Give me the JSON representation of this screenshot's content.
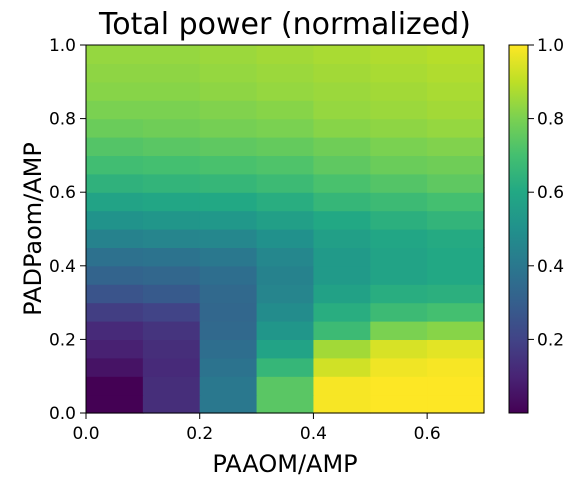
{
  "chart_data": {
    "type": "heatmap",
    "title": "Total power (normalized)",
    "xlabel": "PAAOM/AMP",
    "ylabel": "PADPaom/AMP",
    "xlim": [
      0,
      0.7
    ],
    "ylim": [
      0,
      1.0
    ],
    "x_edges": [
      0.0,
      0.1,
      0.2,
      0.3,
      0.4,
      0.5,
      0.6,
      0.7
    ],
    "y_edges": [
      0.0,
      0.05,
      0.1,
      0.15,
      0.2,
      0.25,
      0.3,
      0.35,
      0.4,
      0.45,
      0.5,
      0.55,
      0.6,
      0.65,
      0.7,
      0.75,
      0.8,
      0.85,
      0.9,
      0.95,
      1.0
    ],
    "xticks": [
      "0.0",
      "0.2",
      "0.4",
      "0.6"
    ],
    "yticks": [
      "0.0",
      "0.2",
      "0.4",
      "0.6",
      "0.8",
      "1.0"
    ],
    "colormap": "viridis",
    "colorbar": {
      "min": 0.0,
      "max": 1.0,
      "ticks": [
        "0.2",
        "0.4",
        "0.6",
        "0.8",
        "1.0"
      ]
    },
    "values_rows_bottom_to_top": [
      [
        0.0,
        0.13,
        0.4,
        0.74,
        0.99,
        1.0,
        1.0
      ],
      [
        0.0,
        0.13,
        0.4,
        0.74,
        0.99,
        1.0,
        1.0
      ],
      [
        0.05,
        0.12,
        0.38,
        0.66,
        0.93,
        0.98,
        0.99
      ],
      [
        0.09,
        0.13,
        0.36,
        0.58,
        0.86,
        0.94,
        0.96
      ],
      [
        0.12,
        0.15,
        0.34,
        0.52,
        0.68,
        0.8,
        0.82
      ],
      [
        0.18,
        0.2,
        0.33,
        0.48,
        0.62,
        0.68,
        0.7
      ],
      [
        0.26,
        0.28,
        0.34,
        0.45,
        0.57,
        0.62,
        0.63
      ],
      [
        0.32,
        0.33,
        0.36,
        0.44,
        0.54,
        0.58,
        0.6
      ],
      [
        0.37,
        0.38,
        0.4,
        0.46,
        0.54,
        0.58,
        0.6
      ],
      [
        0.44,
        0.45,
        0.46,
        0.5,
        0.56,
        0.59,
        0.61
      ],
      [
        0.51,
        0.52,
        0.53,
        0.56,
        0.6,
        0.63,
        0.65
      ],
      [
        0.58,
        0.59,
        0.6,
        0.62,
        0.66,
        0.68,
        0.7
      ],
      [
        0.64,
        0.65,
        0.66,
        0.68,
        0.71,
        0.73,
        0.75
      ],
      [
        0.69,
        0.7,
        0.71,
        0.72,
        0.75,
        0.77,
        0.78
      ],
      [
        0.73,
        0.74,
        0.75,
        0.76,
        0.78,
        0.8,
        0.81
      ],
      [
        0.77,
        0.78,
        0.79,
        0.8,
        0.82,
        0.83,
        0.84
      ],
      [
        0.8,
        0.8,
        0.81,
        0.82,
        0.84,
        0.85,
        0.86
      ],
      [
        0.82,
        0.82,
        0.83,
        0.84,
        0.85,
        0.86,
        0.87
      ],
      [
        0.83,
        0.83,
        0.84,
        0.85,
        0.86,
        0.87,
        0.88
      ],
      [
        0.84,
        0.84,
        0.85,
        0.86,
        0.87,
        0.88,
        0.89
      ]
    ]
  }
}
